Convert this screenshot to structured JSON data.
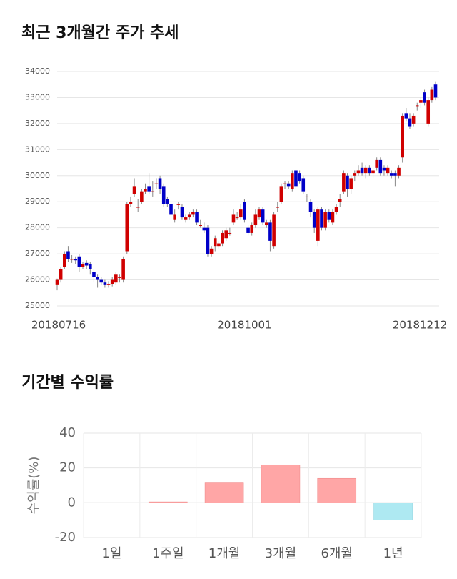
{
  "chart_data": [
    {
      "type": "candlestick",
      "title": "최근 3개월간 주가 추세",
      "categories": [
        "20180716",
        null,
        null,
        null,
        null,
        null,
        null,
        null,
        null,
        null,
        null,
        null,
        null,
        null,
        null,
        null,
        null,
        null,
        null,
        null,
        null,
        null,
        null,
        null,
        null,
        null,
        null,
        null,
        null,
        null,
        null,
        null,
        null,
        null,
        null,
        null,
        null,
        null,
        null,
        null,
        null,
        null,
        null,
        null,
        null,
        null,
        null,
        null,
        null,
        null,
        null,
        "20181001",
        null,
        null,
        null,
        null,
        null,
        null,
        null,
        null,
        null,
        null,
        null,
        null,
        null,
        null,
        null,
        null,
        null,
        null,
        null,
        null,
        null,
        null,
        null,
        null,
        null,
        null,
        null,
        null,
        null,
        null,
        null,
        null,
        null,
        null,
        null,
        null,
        null,
        null,
        null,
        null,
        null,
        null,
        null,
        null,
        null,
        null,
        null,
        null,
        null,
        null,
        null,
        "20181212"
      ],
      "ohlc": [
        [
          25800,
          26050,
          25600,
          26000
        ],
        [
          26000,
          26500,
          25900,
          26400
        ],
        [
          26500,
          27100,
          26400,
          27000
        ],
        [
          27100,
          27300,
          26700,
          26800
        ],
        [
          26800,
          26950,
          26650,
          26800
        ],
        [
          26800,
          26900,
          26600,
          26750
        ],
        [
          26900,
          27000,
          26300,
          26500
        ],
        [
          26500,
          26700,
          26400,
          26600
        ],
        [
          26650,
          26750,
          26400,
          26550
        ],
        [
          26600,
          26700,
          26200,
          26400
        ],
        [
          26300,
          26400,
          25900,
          26100
        ],
        [
          26100,
          26200,
          25700,
          26000
        ],
        [
          26000,
          26100,
          25800,
          25900
        ],
        [
          25900,
          26000,
          25700,
          25800
        ],
        [
          25800,
          25950,
          25700,
          25850
        ],
        [
          25850,
          26100,
          25750,
          26000
        ],
        [
          25900,
          26300,
          25800,
          26200
        ],
        [
          26100,
          26200,
          25900,
          26100
        ],
        [
          26000,
          26900,
          25900,
          26800
        ],
        [
          27100,
          29000,
          27000,
          28900
        ],
        [
          28900,
          29200,
          28800,
          29000
        ],
        [
          29300,
          29900,
          29200,
          29600
        ],
        [
          28800,
          29100,
          28600,
          28800
        ],
        [
          29000,
          29500,
          28900,
          29400
        ],
        [
          29400,
          29700,
          29300,
          29500
        ],
        [
          29600,
          30100,
          29300,
          29400
        ],
        [
          29400,
          29800,
          29200,
          29400
        ],
        [
          29700,
          29900,
          29500,
          29700
        ],
        [
          29900,
          30000,
          29300,
          29500
        ],
        [
          29600,
          29700,
          28800,
          28900
        ],
        [
          29100,
          29200,
          28800,
          28900
        ],
        [
          28900,
          29000,
          28300,
          28500
        ],
        [
          28300,
          28700,
          28200,
          28500
        ],
        [
          28900,
          29000,
          28700,
          28900
        ],
        [
          28800,
          28900,
          28300,
          28400
        ],
        [
          28300,
          28500,
          28200,
          28400
        ],
        [
          28400,
          28600,
          28300,
          28500
        ],
        [
          28500,
          28700,
          28400,
          28600
        ],
        [
          28600,
          28700,
          28100,
          28200
        ],
        [
          28100,
          28300,
          28000,
          28100
        ],
        [
          28000,
          28200,
          27800,
          27900
        ],
        [
          28000,
          28100,
          26900,
          27000
        ],
        [
          27000,
          27300,
          26900,
          27200
        ],
        [
          27300,
          27700,
          27100,
          27600
        ],
        [
          27300,
          27500,
          27200,
          27400
        ],
        [
          27400,
          27900,
          27300,
          27800
        ],
        [
          27600,
          28000,
          27500,
          27900
        ],
        [
          27800,
          28000,
          27700,
          27800
        ],
        [
          28200,
          28700,
          28100,
          28500
        ],
        [
          28400,
          28600,
          28300,
          28400
        ],
        [
          28400,
          28900,
          28300,
          28700
        ],
        [
          29000,
          29100,
          28200,
          28300
        ],
        [
          28000,
          28100,
          27700,
          27800
        ],
        [
          27800,
          28200,
          27700,
          28100
        ],
        [
          28100,
          28700,
          28000,
          28500
        ],
        [
          28400,
          28800,
          28300,
          28700
        ],
        [
          28700,
          28800,
          28100,
          28200
        ],
        [
          28100,
          28300,
          28000,
          28200
        ],
        [
          28200,
          28300,
          27100,
          27500
        ],
        [
          27300,
          28600,
          27200,
          28500
        ],
        [
          28800,
          29000,
          28600,
          28800
        ],
        [
          29000,
          29700,
          28900,
          29600
        ],
        [
          29700,
          29800,
          29500,
          29700
        ],
        [
          29700,
          29800,
          29500,
          29600
        ],
        [
          29500,
          30200,
          29400,
          30100
        ],
        [
          30200,
          30200,
          29500,
          29600
        ],
        [
          30100,
          30200,
          29700,
          29800
        ],
        [
          29900,
          30000,
          29300,
          29400
        ],
        [
          29200,
          29300,
          29000,
          29200
        ],
        [
          29000,
          29100,
          28400,
          28600
        ],
        [
          28600,
          28700,
          27800,
          28000
        ],
        [
          27500,
          28800,
          27300,
          28700
        ],
        [
          28700,
          28800,
          27900,
          28000
        ],
        [
          28000,
          28700,
          27900,
          28600
        ],
        [
          28600,
          28700,
          28200,
          28300
        ],
        [
          28200,
          28700,
          28100,
          28600
        ],
        [
          28600,
          28900,
          28500,
          28800
        ],
        [
          29000,
          29300,
          28800,
          29100
        ],
        [
          29400,
          30200,
          29300,
          30100
        ],
        [
          30000,
          30100,
          29200,
          29500
        ],
        [
          29500,
          30000,
          29300,
          29900
        ],
        [
          30000,
          30200,
          29800,
          30100
        ],
        [
          30100,
          30400,
          30000,
          30200
        ],
        [
          30300,
          30500,
          30000,
          30100
        ],
        [
          30100,
          30400,
          29900,
          30300
        ],
        [
          30300,
          30400,
          30000,
          30100
        ],
        [
          30100,
          30300,
          29900,
          30200
        ],
        [
          30300,
          30700,
          30200,
          30600
        ],
        [
          30600,
          30700,
          30000,
          30100
        ],
        [
          30300,
          30400,
          30000,
          30200
        ],
        [
          30100,
          30400,
          30000,
          30300
        ],
        [
          30100,
          30200,
          29900,
          30000
        ],
        [
          30100,
          30200,
          29600,
          30000
        ],
        [
          30000,
          30400,
          29900,
          30300
        ],
        [
          30700,
          32400,
          30500,
          32300
        ],
        [
          32400,
          32600,
          32100,
          32200
        ],
        [
          32200,
          32400,
          31800,
          31900
        ],
        [
          32000,
          32400,
          31900,
          32300
        ],
        [
          32700,
          32800,
          32500,
          32700
        ],
        [
          32800,
          33000,
          32600,
          32900
        ],
        [
          33200,
          33300,
          32700,
          32800
        ],
        [
          32000,
          33000,
          31900,
          32900
        ],
        [
          32900,
          33400,
          32800,
          33300
        ],
        [
          33500,
          33600,
          32900,
          33000
        ]
      ],
      "up_color": "#d00000",
      "down_color": "#0000c8",
      "ylim": [
        25000,
        34000
      ],
      "yticks": [
        25000,
        26000,
        27000,
        28000,
        29000,
        30000,
        31000,
        32000,
        33000,
        34000
      ],
      "grid": true
    },
    {
      "type": "bar",
      "title": "기간별 수익률",
      "y_label": "수익률(%)",
      "categories": [
        "1일",
        "1주일",
        "1개월",
        "3개월",
        "6개월",
        "1년"
      ],
      "values": [
        0,
        0.5,
        11.8,
        21.8,
        14.0,
        -10.0
      ],
      "positive_color": "#ffa6a6",
      "negative_color": "#aee9f2",
      "ylim": [
        -20,
        40
      ],
      "yticks": [
        -20,
        0,
        20,
        40
      ],
      "grid": true
    }
  ]
}
